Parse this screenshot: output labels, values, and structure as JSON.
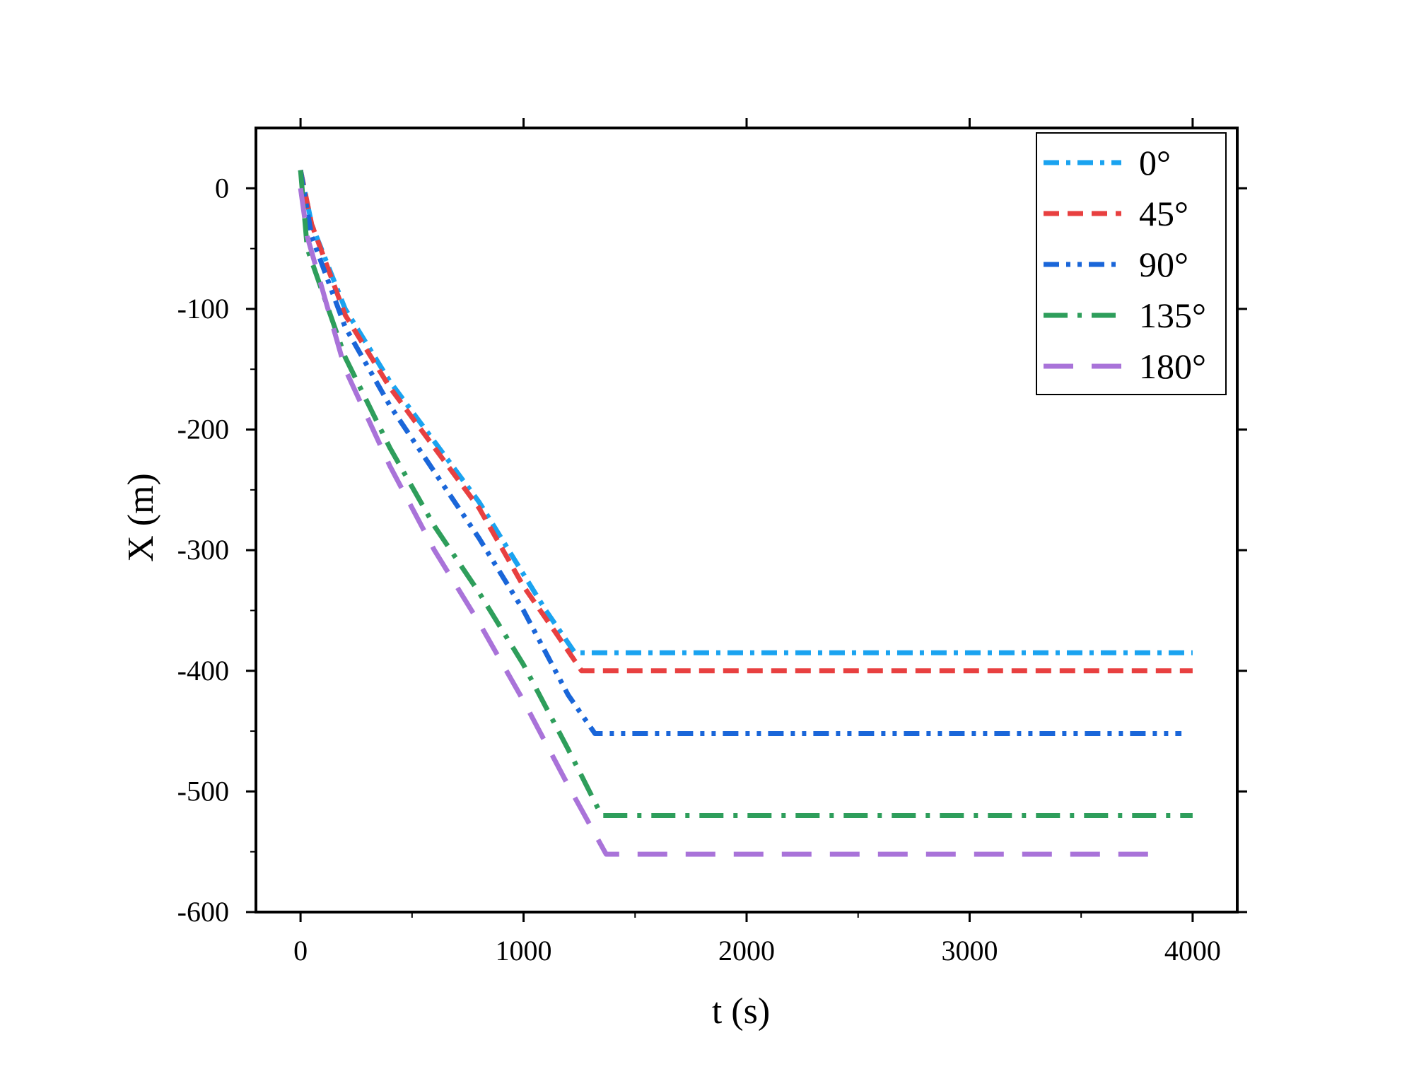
{
  "chart_data": {
    "type": "line",
    "xlabel": "t (s)",
    "ylabel": "X (m)",
    "xlim": [
      -200,
      4200
    ],
    "ylim": [
      -600,
      50
    ],
    "xticks": [
      "0",
      "1000",
      "2000",
      "3000",
      "4000"
    ],
    "yticks": [
      "0",
      "-100",
      "-200",
      "-300",
      "-400",
      "-500",
      "-600"
    ],
    "grid": false,
    "legend_position": "top-right",
    "series": [
      {
        "name": "0°",
        "color": "#1aa3f0",
        "dash": "dash-dot",
        "x": [
          0,
          50,
          200,
          400,
          600,
          800,
          1000,
          1100,
          1230,
          1400,
          2000,
          3000,
          4000
        ],
        "y": [
          15,
          -30,
          -100,
          -160,
          -210,
          -260,
          -320,
          -350,
          -385,
          -385,
          -385,
          -385,
          -385
        ]
      },
      {
        "name": "45°",
        "color": "#e84040",
        "dash": "dash",
        "x": [
          0,
          50,
          200,
          400,
          600,
          800,
          1000,
          1150,
          1260,
          1400,
          2000,
          3000,
          4000
        ],
        "y": [
          15,
          -30,
          -105,
          -165,
          -215,
          -265,
          -330,
          -370,
          -400,
          -400,
          -400,
          -400,
          -400
        ]
      },
      {
        "name": "90°",
        "color": "#1a66d9",
        "dash": "dash-dot-dot",
        "x": [
          0,
          50,
          200,
          400,
          600,
          800,
          1000,
          1200,
          1320,
          1400,
          2000,
          3000,
          3950
        ],
        "y": [
          15,
          -40,
          -115,
          -180,
          -235,
          -290,
          -350,
          -420,
          -452,
          -452,
          -452,
          -452,
          -452
        ]
      },
      {
        "name": "135°",
        "color": "#2e9e5b",
        "dash": "long-dash-dot",
        "x": [
          0,
          30,
          200,
          400,
          600,
          800,
          1000,
          1200,
          1350,
          1500,
          2000,
          3000,
          4000
        ],
        "y": [
          15,
          -50,
          -140,
          -215,
          -280,
          -335,
          -395,
          -465,
          -520,
          -520,
          -520,
          -520,
          -520
        ]
      },
      {
        "name": "180°",
        "color": "#a973d9",
        "dash": "long-dash",
        "x": [
          0,
          30,
          200,
          400,
          600,
          800,
          1000,
          1200,
          1370,
          1500,
          2000,
          3000,
          3850
        ],
        "y": [
          0,
          -40,
          -150,
          -230,
          -300,
          -360,
          -425,
          -495,
          -552,
          -552,
          -552,
          -552,
          -552
        ]
      }
    ]
  }
}
